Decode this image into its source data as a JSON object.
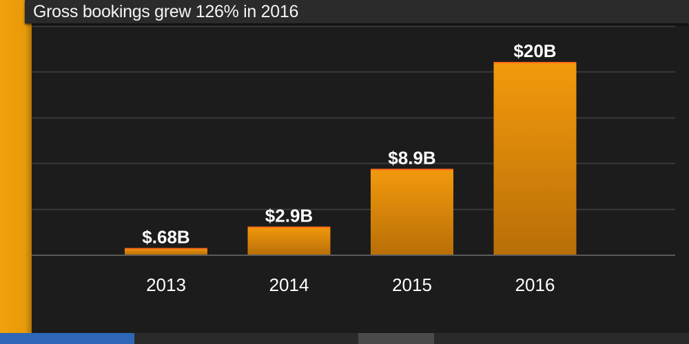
{
  "title": "Gross bookings grew 126% in 2016",
  "colors": {
    "background": "#1c1c1c",
    "accent": "#f2a10c",
    "bar_top": "#f39a0c",
    "bar_bottom": "#b96f08",
    "gridline": "#3a3a3a",
    "baseline": "#5a5a5a"
  },
  "chart_data": {
    "type": "bar",
    "title": "Gross bookings grew 126% in 2016",
    "categories": [
      "2013",
      "2014",
      "2015",
      "2016"
    ],
    "values": [
      0.68,
      2.9,
      8.9,
      20
    ],
    "value_labels": [
      "$.68B",
      "$2.9B",
      "$8.9B",
      "$20B"
    ],
    "xlabel": "",
    "ylabel": "",
    "ylim": [
      0,
      25
    ],
    "unit": "USD billions",
    "grid": true,
    "legend": "none"
  }
}
